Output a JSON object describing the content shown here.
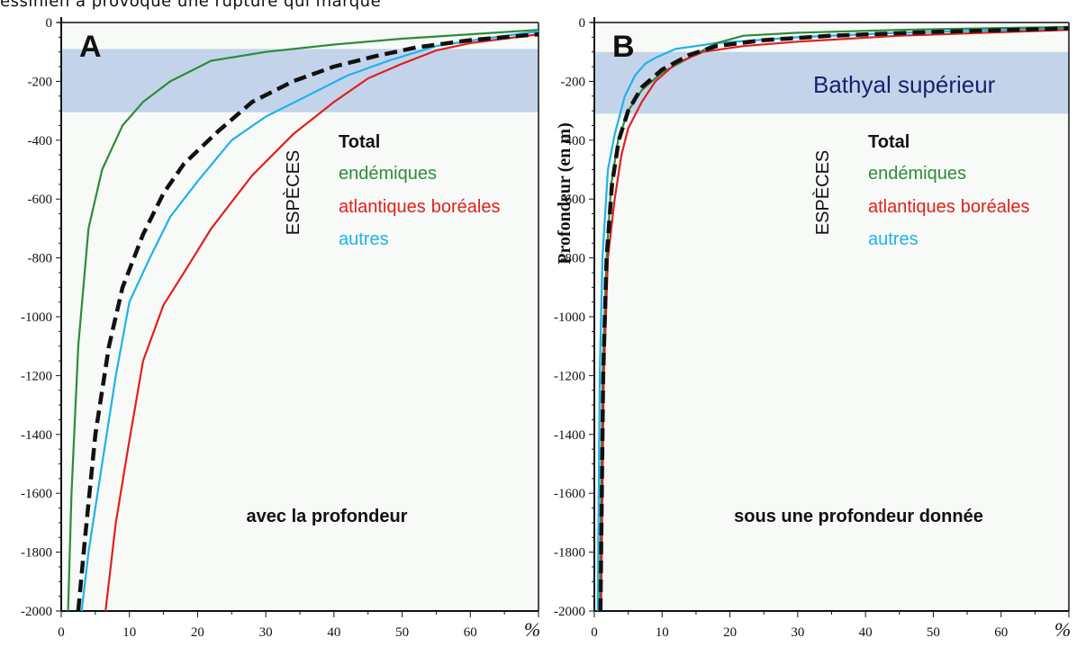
{
  "header_text": "essinien a provoqué une rupture qui marque",
  "colors": {
    "total": "#111111",
    "endemiques": "#2e8b3a",
    "atlantiques": "#e0201e",
    "autres": "#1fb1ec",
    "band": "#c3d4ea",
    "band_label": "#1b1f6e",
    "plot_bg": "#f7faf6"
  },
  "legend": {
    "group_label": "ESPÈCES",
    "total": "Total",
    "endemiques": "endémiques",
    "atlantiques": "atlantiques",
    "atlantiques_suffix": "boréales",
    "autres": "autres"
  },
  "chart_data": [
    {
      "type": "line",
      "panel": "A",
      "annotation": "avec la profondeur",
      "xlabel": "%",
      "ylabel": "",
      "xlim": [
        0,
        70
      ],
      "ylim": [
        -2000,
        0
      ],
      "x_ticks": [
        0,
        10,
        20,
        30,
        40,
        50,
        60
      ],
      "y_ticks": [
        0,
        -200,
        -400,
        -600,
        -800,
        -1000,
        -1200,
        -1400,
        -1600,
        -1800,
        -2000
      ],
      "shaded_band": [
        -90,
        -305
      ],
      "band_label": "",
      "series": [
        {
          "key": "endemiques",
          "x": [
            1,
            1.5,
            2.5,
            4,
            6,
            9,
            12,
            16,
            22,
            30,
            40,
            50,
            60,
            70
          ],
          "y": [
            -2000,
            -1600,
            -1100,
            -700,
            -500,
            -350,
            -270,
            -200,
            -130,
            -100,
            -75,
            -55,
            -40,
            -25
          ]
        },
        {
          "key": "autres",
          "x": [
            3,
            4,
            6,
            8,
            10,
            13,
            16,
            20,
            25,
            30,
            36,
            42,
            48,
            55,
            62,
            70
          ],
          "y": [
            -2000,
            -1800,
            -1500,
            -1200,
            -950,
            -800,
            -660,
            -540,
            -400,
            -320,
            -250,
            -180,
            -130,
            -80,
            -55,
            -30
          ]
        },
        {
          "key": "atlantiques",
          "x": [
            6.5,
            8,
            10,
            12,
            15,
            18,
            22,
            28,
            34,
            40,
            45,
            50,
            55,
            60,
            70
          ],
          "y": [
            -2000,
            -1700,
            -1420,
            -1150,
            -960,
            -850,
            -700,
            -520,
            -380,
            -270,
            -190,
            -140,
            -95,
            -70,
            -40
          ]
        },
        {
          "key": "total",
          "x": [
            2.5,
            3.5,
            5,
            7,
            9,
            12,
            15,
            18,
            23,
            28,
            34,
            40,
            46,
            52,
            60,
            70
          ],
          "y": [
            -2000,
            -1750,
            -1400,
            -1100,
            -900,
            -720,
            -580,
            -480,
            -370,
            -270,
            -200,
            -150,
            -115,
            -85,
            -60,
            -40
          ]
        }
      ]
    },
    {
      "type": "line",
      "panel": "B",
      "annotation": "sous une profondeur donnée",
      "xlabel": "%",
      "ylabel": "Profondeur",
      "ylabel_unit": "(en m)",
      "xlim": [
        0,
        70
      ],
      "ylim": [
        -2000,
        0
      ],
      "x_ticks": [
        0,
        10,
        20,
        30,
        40,
        50,
        60
      ],
      "y_ticks": [
        0,
        -200,
        -400,
        -600,
        -800,
        -1000,
        -1200,
        -1400,
        -1600,
        -1800,
        -2000
      ],
      "shaded_band": [
        -100,
        -310
      ],
      "band_label": "Bathyal supérieur",
      "series": [
        {
          "key": "autres",
          "x": [
            0.5,
            0.8,
            1.2,
            2,
            3,
            4.5,
            6,
            7.5,
            9,
            12,
            18,
            30,
            45,
            70
          ],
          "y": [
            -2000,
            -1200,
            -800,
            -500,
            -380,
            -250,
            -180,
            -140,
            -120,
            -90,
            -70,
            -50,
            -35,
            -20
          ]
        },
        {
          "key": "endemiques",
          "x": [
            0.8,
            1.2,
            1.8,
            2.5,
            3.5,
            5,
            7,
            10,
            14,
            18,
            22,
            30,
            45,
            70
          ],
          "y": [
            -2000,
            -1200,
            -800,
            -550,
            -400,
            -300,
            -230,
            -170,
            -120,
            -70,
            -45,
            -35,
            -25,
            -15
          ]
        },
        {
          "key": "atlantiques",
          "x": [
            1,
            1.4,
            2,
            3,
            4,
            5,
            7,
            9,
            12,
            16,
            22,
            30,
            45,
            70
          ],
          "y": [
            -2000,
            -1200,
            -800,
            -600,
            -450,
            -360,
            -270,
            -200,
            -140,
            -100,
            -80,
            -65,
            -45,
            -25
          ]
        },
        {
          "key": "total",
          "x": [
            0.9,
            1.3,
            1.8,
            2.6,
            3.6,
            5,
            7,
            10,
            14,
            18,
            25,
            35,
            50,
            70
          ],
          "y": [
            -2000,
            -1200,
            -800,
            -550,
            -400,
            -300,
            -220,
            -160,
            -110,
            -80,
            -60,
            -45,
            -32,
            -20
          ]
        }
      ]
    }
  ]
}
